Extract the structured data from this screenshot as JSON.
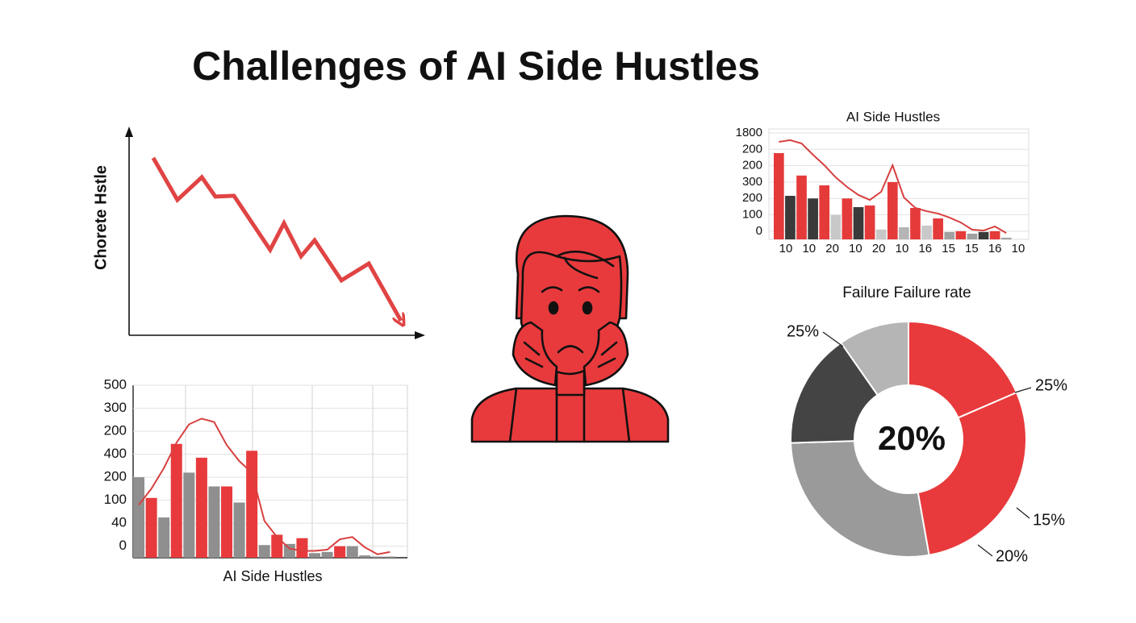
{
  "title": "Challenges of AI Side Hustles",
  "chart_data": [
    {
      "type": "line",
      "y_label": "Chorete Hstle",
      "color": "#e04444",
      "x": [
        8.2,
        16.4,
        24.7,
        29.3,
        35.6,
        47.9,
        52.6,
        58.4,
        63.0,
        72.1,
        81.4,
        92.3
      ],
      "y": [
        85.3,
        65.1,
        76.0,
        66.7,
        67.1,
        41.1,
        53.9,
        38.0,
        45.7,
        26.4,
        34.5,
        7.0
      ],
      "xlim": [
        0,
        100
      ],
      "ylim": [
        0,
        100
      ]
    },
    {
      "type": "bar",
      "x_label": "AI Side Hustles",
      "categories": [
        null,
        null,
        null,
        null,
        null,
        null,
        null,
        null,
        null,
        null,
        null,
        null,
        null,
        null,
        null,
        null,
        null,
        null,
        null,
        null,
        null
      ],
      "values": [
        3.5,
        2.6,
        1.75,
        4.95,
        3.7,
        4.35,
        3.1,
        3.1,
        2.4,
        4.65,
        0.55,
        1.0,
        0.6,
        0.85,
        0.2,
        0.25,
        0.5,
        0.5,
        0.1,
        0.05,
        0.05
      ],
      "colors": [
        "#8f8f8f",
        "#e83a3c",
        "#8f8f8f",
        "#e83a3c",
        "#8f8f8f",
        "#e83a3c",
        "#8f8f8f",
        "#e83a3c",
        "#8f8f8f",
        "#e83a3c",
        "#8f8f8f",
        "#e83a3c",
        "#8f8f8f",
        "#e83a3c",
        "#8f8f8f",
        "#8f8f8f",
        "#e83a3c",
        "#8f8f8f",
        "#8f8f8f",
        "#8f8f8f",
        "#8f8f8f"
      ],
      "line_values": [
        2.3,
        3.0,
        3.9,
        5.0,
        5.8,
        6.05,
        5.9,
        4.9,
        4.2,
        3.7,
        1.6,
        0.9,
        0.4,
        0.3,
        0.3,
        0.35,
        0.8,
        0.9,
        0.45,
        0.15,
        0.25
      ],
      "line_color": "#d84040",
      "ylim": [
        0,
        7.5
      ],
      "yticks": [
        {
          "value": 0.5,
          "label": "0"
        },
        {
          "value": 1.5,
          "label": "40"
        },
        {
          "value": 2.5,
          "label": "100"
        },
        {
          "value": 3.5,
          "label": "200"
        },
        {
          "value": 4.5,
          "label": "400"
        },
        {
          "value": 5.5,
          "label": "200"
        },
        {
          "value": 6.5,
          "label": "300"
        },
        {
          "value": 7.5,
          "label": "500"
        }
      ],
      "grid": true
    },
    {
      "type": "bar",
      "title": "AI Side Hustles",
      "x_labels": [
        "10",
        "10",
        "20",
        "10",
        "20",
        "10",
        "16",
        "15",
        "15",
        "16",
        "10"
      ],
      "values": [
        5.27,
        2.66,
        3.9,
        2.5,
        3.3,
        1.48,
        2.5,
        1.97,
        2.07,
        0.6,
        3.5,
        0.74,
        1.92,
        0.84,
        1.28,
        0.45,
        0.5,
        0.35,
        0.45,
        0.5,
        0.1
      ],
      "colors": [
        "#e53a3a",
        "#3a3a3a",
        "#e53a3a",
        "#3a3a3a",
        "#e53a3a",
        "#c8c8c8",
        "#e53a3a",
        "#3a3a3a",
        "#e53a3a",
        "#c8c8c8",
        "#e53a3a",
        "#b5b5b5",
        "#e53a3a",
        "#c8c8c8",
        "#e53a3a",
        "#a0a0a0",
        "#e53a3a",
        "#a0a0a0",
        "#3a3a3a",
        "#e53a3a",
        "#a0a0a0"
      ],
      "line_values": [
        5.96,
        6.06,
        5.86,
        5.17,
        4.53,
        3.79,
        3.2,
        2.71,
        2.41,
        2.91,
        4.53,
        2.56,
        1.92,
        1.72,
        1.58,
        1.33,
        1.03,
        0.59,
        0.54,
        0.79,
        0.39
      ],
      "line_color": "#d84040",
      "ylim": [
        0,
        6.5
      ],
      "yticks": [
        {
          "value": 0.5,
          "label": "0"
        },
        {
          "value": 1.5,
          "label": "100"
        },
        {
          "value": 2.5,
          "label": "200"
        },
        {
          "value": 3.5,
          "label": "300"
        },
        {
          "value": 4.5,
          "label": "200"
        },
        {
          "value": 5.5,
          "label": "200"
        },
        {
          "value": 6.5,
          "label": "1800"
        }
      ],
      "grid": true
    },
    {
      "type": "pie",
      "title": "Failure Failure rate",
      "center_label": "20%",
      "values": [
        18.5,
        28.7,
        27.3,
        15.8,
        9.7
      ],
      "colors": [
        "#e83a3c",
        "#e83a3c",
        "#9a9a9a",
        "#444444",
        "#b5b5b5"
      ],
      "annotations": [
        "25%",
        "25%",
        "15%",
        "20%"
      ]
    }
  ]
}
